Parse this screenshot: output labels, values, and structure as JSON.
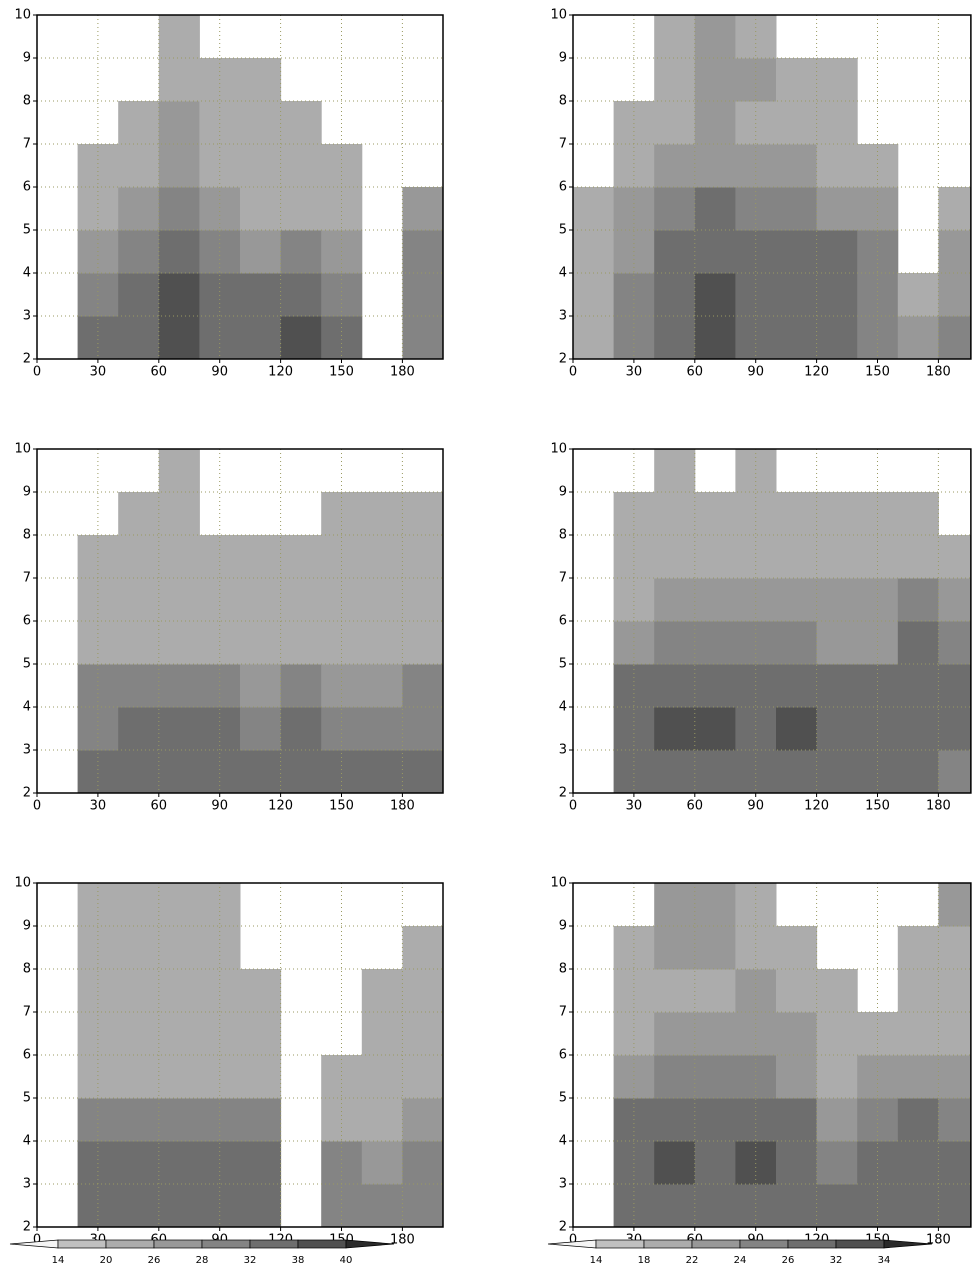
{
  "chart_data": [
    {
      "type": "contour",
      "xlim": [
        0,
        200
      ],
      "ylim": [
        2,
        10
      ],
      "xticks": [
        0,
        30,
        60,
        90,
        120,
        150,
        180
      ],
      "yticks": [
        2,
        3,
        4,
        5,
        6,
        7,
        8,
        9,
        10
      ],
      "grid": true,
      "xbins": [
        0,
        20,
        40,
        60,
        80,
        100,
        120,
        140,
        160,
        180,
        200
      ],
      "ybins": [
        2,
        3,
        4,
        5,
        6,
        7,
        8,
        9,
        10
      ],
      "levels": [
        14,
        20,
        26,
        28,
        32,
        38,
        40
      ],
      "colors": [
        "#f4f4f4",
        "#c0c0c0",
        "#acacac",
        "#989898",
        "#848484",
        "#6e6e6e",
        "#505050",
        "#2a2a2a"
      ],
      "z": [
        [
          null,
          32,
          32,
          38,
          32,
          32,
          38,
          32,
          null,
          28
        ],
        [
          null,
          30,
          32,
          38,
          32,
          32,
          35,
          30,
          null,
          30
        ],
        [
          null,
          27,
          30,
          33,
          30,
          27,
          30,
          27,
          null,
          30
        ],
        [
          null,
          22,
          26,
          30,
          27,
          24,
          24,
          22,
          null,
          27
        ],
        [
          null,
          22,
          24,
          27,
          22,
          22,
          22,
          20,
          null,
          null
        ],
        [
          null,
          null,
          22,
          26,
          22,
          22,
          20,
          null,
          null,
          null
        ],
        [
          null,
          null,
          null,
          24,
          22,
          22,
          null,
          null,
          null,
          null
        ],
        [
          null,
          null,
          null,
          24,
          null,
          null,
          null,
          null,
          null,
          null
        ]
      ]
    },
    {
      "type": "contour",
      "xlim": [
        0,
        196
      ],
      "ylim": [
        2,
        10
      ],
      "xticks": [
        0,
        30,
        60,
        90,
        120,
        150,
        180
      ],
      "yticks": [
        2,
        3,
        4,
        5,
        6,
        7,
        8,
        9,
        10
      ],
      "grid": true,
      "xbins": [
        0,
        20,
        40,
        60,
        80,
        100,
        120,
        140,
        160,
        180,
        200
      ],
      "ybins": [
        2,
        3,
        4,
        5,
        6,
        7,
        8,
        9,
        10
      ],
      "levels": [
        14,
        18,
        22,
        24,
        26,
        32,
        34
      ],
      "colors": [
        "#f4f4f4",
        "#c0c0c0",
        "#acacac",
        "#989898",
        "#848484",
        "#6e6e6e",
        "#505050",
        "#2a2a2a"
      ],
      "z": [
        [
          20,
          24,
          30,
          32,
          30,
          28,
          26,
          24,
          22,
          24
        ],
        [
          20,
          24,
          30,
          33,
          30,
          28,
          28,
          24,
          20,
          22
        ],
        [
          20,
          22,
          28,
          30,
          28,
          26,
          26,
          24,
          null,
          22
        ],
        [
          18,
          22,
          24,
          26,
          24,
          24,
          22,
          22,
          null,
          20
        ],
        [
          null,
          20,
          22,
          22,
          22,
          22,
          20,
          20,
          null,
          null
        ],
        [
          null,
          18,
          20,
          22,
          20,
          20,
          18,
          null,
          null,
          null
        ],
        [
          null,
          null,
          20,
          22,
          22,
          20,
          18,
          null,
          null,
          null
        ],
        [
          null,
          null,
          20,
          22,
          20,
          null,
          null,
          null,
          null,
          null
        ]
      ]
    },
    {
      "type": "contour",
      "xlim": [
        0,
        200
      ],
      "ylim": [
        2,
        10
      ],
      "xticks": [
        0,
        30,
        60,
        90,
        120,
        150,
        180
      ],
      "yticks": [
        2,
        3,
        4,
        5,
        6,
        7,
        8,
        9,
        10
      ],
      "grid": true,
      "xbins": [
        0,
        20,
        40,
        60,
        80,
        100,
        120,
        140,
        160,
        180,
        200
      ],
      "ybins": [
        2,
        3,
        4,
        5,
        6,
        7,
        8,
        9,
        10
      ],
      "levels": [
        14,
        20,
        26,
        28,
        32,
        38,
        40
      ],
      "colors": [
        "#f4f4f4",
        "#c0c0c0",
        "#acacac",
        "#989898",
        "#848484",
        "#6e6e6e",
        "#505050",
        "#2a2a2a"
      ],
      "z": [
        [
          null,
          32,
          32,
          34,
          32,
          32,
          32,
          32,
          32,
          32
        ],
        [
          null,
          30,
          32,
          32,
          32,
          30,
          32,
          30,
          30,
          30
        ],
        [
          null,
          28,
          28,
          30,
          28,
          27,
          28,
          27,
          27,
          28
        ],
        [
          null,
          22,
          24,
          24,
          24,
          22,
          24,
          22,
          22,
          24
        ],
        [
          null,
          20,
          22,
          22,
          22,
          22,
          22,
          22,
          22,
          22
        ],
        [
          null,
          20,
          20,
          22,
          20,
          20,
          20,
          22,
          22,
          22
        ],
        [
          null,
          null,
          20,
          20,
          null,
          null,
          null,
          20,
          20,
          20
        ],
        [
          null,
          null,
          null,
          20,
          null,
          null,
          null,
          null,
          null,
          null
        ]
      ]
    },
    {
      "type": "contour",
      "xlim": [
        0,
        196
      ],
      "ylim": [
        2,
        10
      ],
      "xticks": [
        0,
        30,
        60,
        90,
        120,
        150,
        180
      ],
      "yticks": [
        2,
        3,
        4,
        5,
        6,
        7,
        8,
        9,
        10
      ],
      "grid": true,
      "xbins": [
        0,
        20,
        40,
        60,
        80,
        100,
        120,
        140,
        160,
        180,
        200
      ],
      "ybins": [
        2,
        3,
        4,
        5,
        6,
        7,
        8,
        9,
        10
      ],
      "levels": [
        14,
        18,
        22,
        24,
        26,
        32,
        34
      ],
      "colors": [
        "#f4f4f4",
        "#c0c0c0",
        "#acacac",
        "#989898",
        "#848484",
        "#6e6e6e",
        "#505050",
        "#2a2a2a"
      ],
      "z": [
        [
          null,
          28,
          30,
          28,
          28,
          30,
          28,
          28,
          26,
          24
        ],
        [
          null,
          28,
          33,
          33,
          30,
          33,
          28,
          28,
          28,
          26
        ],
        [
          null,
          26,
          28,
          28,
          28,
          28,
          26,
          26,
          28,
          26
        ],
        [
          null,
          22,
          24,
          24,
          24,
          24,
          22,
          22,
          26,
          24
        ],
        [
          null,
          20,
          22,
          22,
          22,
          22,
          22,
          22,
          24,
          22
        ],
        [
          null,
          20,
          20,
          20,
          20,
          20,
          20,
          20,
          20,
          20
        ],
        [
          null,
          20,
          20,
          18,
          20,
          20,
          20,
          20,
          18,
          null
        ],
        [
          null,
          null,
          20,
          null,
          20,
          null,
          null,
          null,
          null,
          null
        ]
      ]
    },
    {
      "type": "contour",
      "xlim": [
        0,
        200
      ],
      "ylim": [
        2,
        10
      ],
      "xticks": [
        0,
        30,
        60,
        90,
        120,
        150,
        180
      ],
      "yticks": [
        2,
        3,
        4,
        5,
        6,
        7,
        8,
        9,
        10
      ],
      "grid": true,
      "colorbar": true,
      "xbins": [
        0,
        20,
        40,
        60,
        80,
        100,
        120,
        140,
        160,
        180,
        200
      ],
      "ybins": [
        2,
        3,
        4,
        5,
        6,
        7,
        8,
        9,
        10
      ],
      "levels": [
        14,
        20,
        26,
        28,
        32,
        38,
        40
      ],
      "colors": [
        "#f4f4f4",
        "#c0c0c0",
        "#acacac",
        "#989898",
        "#848484",
        "#6e6e6e",
        "#505050",
        "#2a2a2a"
      ],
      "z": [
        [
          null,
          32,
          32,
          34,
          32,
          32,
          null,
          28,
          28,
          28
        ],
        [
          null,
          32,
          32,
          34,
          32,
          32,
          null,
          28,
          27,
          28
        ],
        [
          null,
          28,
          28,
          30,
          28,
          28,
          null,
          22,
          24,
          26
        ],
        [
          null,
          20,
          22,
          24,
          24,
          22,
          null,
          20,
          20,
          20
        ],
        [
          null,
          20,
          20,
          22,
          22,
          22,
          null,
          null,
          20,
          22
        ],
        [
          null,
          20,
          20,
          20,
          22,
          22,
          null,
          null,
          20,
          20
        ],
        [
          null,
          20,
          20,
          20,
          22,
          null,
          null,
          null,
          null,
          20
        ],
        [
          null,
          20,
          20,
          20,
          22,
          null,
          null,
          null,
          null,
          null
        ]
      ]
    },
    {
      "type": "contour",
      "xlim": [
        0,
        196
      ],
      "ylim": [
        2,
        10
      ],
      "xticks": [
        0,
        30,
        60,
        90,
        120,
        150,
        180
      ],
      "yticks": [
        2,
        3,
        4,
        5,
        6,
        7,
        8,
        9,
        10
      ],
      "grid": true,
      "colorbar": true,
      "xbins": [
        0,
        20,
        40,
        60,
        80,
        100,
        120,
        140,
        160,
        180,
        200
      ],
      "ybins": [
        2,
        3,
        4,
        5,
        6,
        7,
        8,
        9,
        10
      ],
      "levels": [
        14,
        18,
        22,
        24,
        26,
        32,
        34
      ],
      "colors": [
        "#f4f4f4",
        "#c0c0c0",
        "#acacac",
        "#989898",
        "#848484",
        "#6e6e6e",
        "#505050",
        "#2a2a2a"
      ],
      "z": [
        [
          null,
          28,
          28,
          28,
          28,
          28,
          26,
          26,
          28,
          26
        ],
        [
          null,
          28,
          32,
          30,
          32,
          28,
          24,
          26,
          28,
          26
        ],
        [
          null,
          26,
          28,
          28,
          28,
          26,
          22,
          24,
          26,
          24
        ],
        [
          null,
          22,
          24,
          24,
          24,
          22,
          20,
          22,
          22,
          22
        ],
        [
          null,
          20,
          22,
          22,
          22,
          22,
          20,
          20,
          20,
          20
        ],
        [
          null,
          20,
          20,
          20,
          22,
          20,
          20,
          null,
          20,
          20
        ],
        [
          null,
          20,
          22,
          22,
          20,
          20,
          null,
          null,
          20,
          20
        ],
        [
          null,
          null,
          22,
          22,
          20,
          null,
          null,
          null,
          null,
          22
        ]
      ]
    }
  ]
}
